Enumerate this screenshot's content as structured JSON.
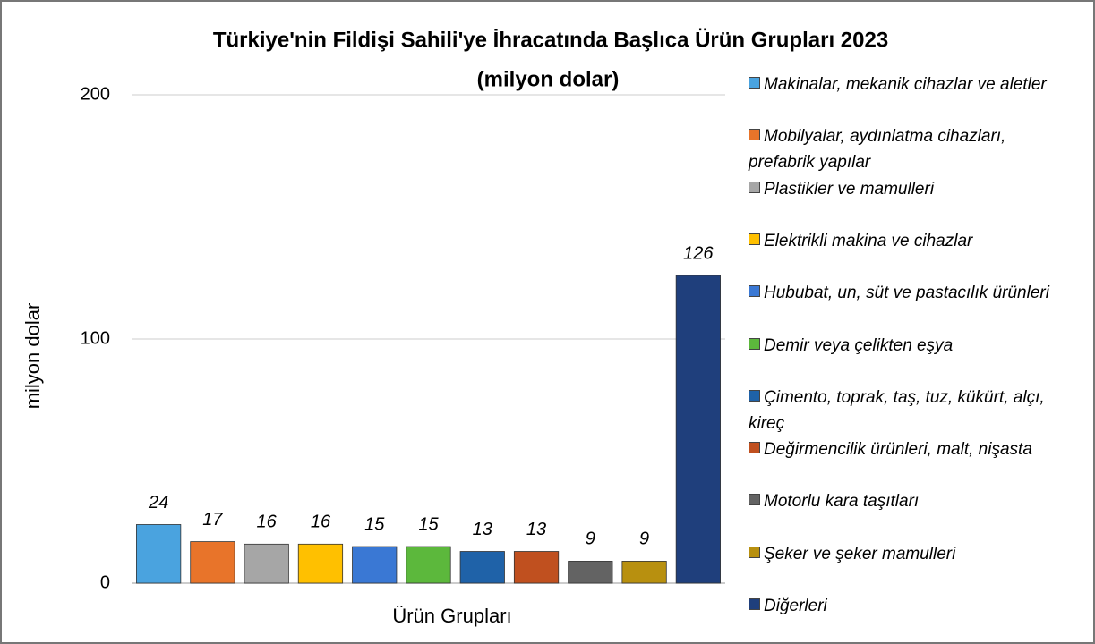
{
  "chart_data": {
    "type": "bar",
    "title": "Türkiye'nin Fildişi Sahili'ye İhracatında Başlıca Ürün Grupları 2023",
    "subtitle": "(milyon dolar)",
    "y_label": "milyon dolar",
    "x_label": "Ürün Grupları",
    "categories": [
      "Makinalar, mekanik cihazlar ve aletler",
      "Mobilyalar, aydınlatma cihazları, prefabrik yapılar",
      "Plastikler ve mamulleri",
      "Elektrikli makina ve cihazlar",
      "Hububat, un, süt ve pastacılık ürünleri",
      "Demir veya çelikten eşya",
      "Çimento, toprak, taş, tuz, kükürt, alçı, kireç",
      "Değirmencilik ürünleri, malt, nişasta",
      "Motorlu kara taşıtları",
      "Şeker ve şeker mamulleri",
      "Diğerleri"
    ],
    "values": [
      24,
      17,
      16,
      16,
      15,
      15,
      13,
      13,
      9,
      9,
      126
    ],
    "colors": [
      "#4aa3df",
      "#e8742a",
      "#a6a6a6",
      "#ffc000",
      "#3a78d4",
      "#5cb83c",
      "#1f62a8",
      "#c0501f",
      "#636363",
      "#b8900f",
      "#1f3f7c"
    ],
    "ylim": [
      0,
      200
    ],
    "yticks": [
      0,
      100,
      200
    ],
    "grid": true,
    "legend": "right"
  }
}
